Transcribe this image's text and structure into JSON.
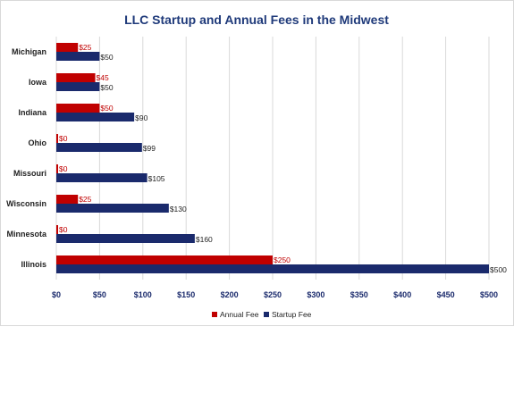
{
  "chart_data": {
    "type": "bar",
    "orientation": "horizontal",
    "title": "LLC Startup and Annual Fees in the Midwest",
    "categories": [
      "Michigan",
      "Iowa",
      "Indiana",
      "Ohio",
      "Missouri",
      "Wisconsin",
      "Minnesota",
      "Illinois"
    ],
    "series": [
      {
        "name": "Annual Fee",
        "color": "#c00000",
        "values": [
          25,
          45,
          50,
          0,
          0,
          25,
          0,
          250
        ],
        "labels": [
          "$25",
          "$45",
          "$50",
          "$0",
          "$0",
          "$25",
          "$0",
          "$250"
        ]
      },
      {
        "name": "Startup Fee",
        "color": "#1a2a6c",
        "values": [
          50,
          50,
          90,
          99,
          105,
          130,
          160,
          500
        ],
        "labels": [
          "$50",
          "$50",
          "$90",
          "$99",
          "$105",
          "$130",
          "$160",
          "$500"
        ]
      }
    ],
    "xlim": [
      0,
      500
    ],
    "x_ticks": [
      "$0",
      "$50",
      "$100",
      "$150",
      "$200",
      "$250",
      "$300",
      "$350",
      "$400",
      "$450",
      "$500"
    ],
    "grid": "vertical",
    "legend": "bottom"
  }
}
